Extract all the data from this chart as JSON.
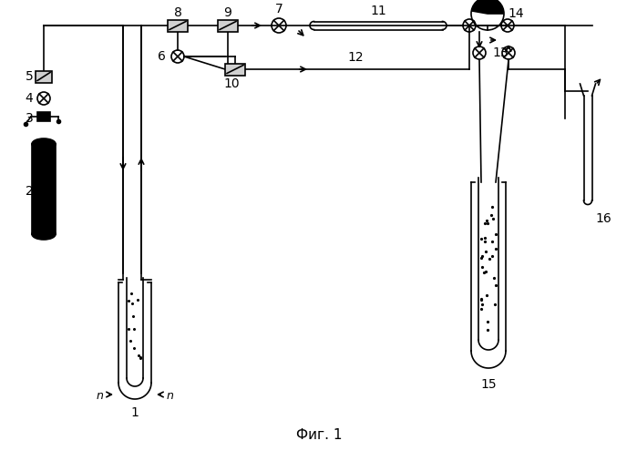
{
  "title": "Фиг. 1",
  "bg_color": "#ffffff",
  "line_color": "#000000",
  "figsize": [
    6.99,
    4.95
  ],
  "dpi": 100
}
